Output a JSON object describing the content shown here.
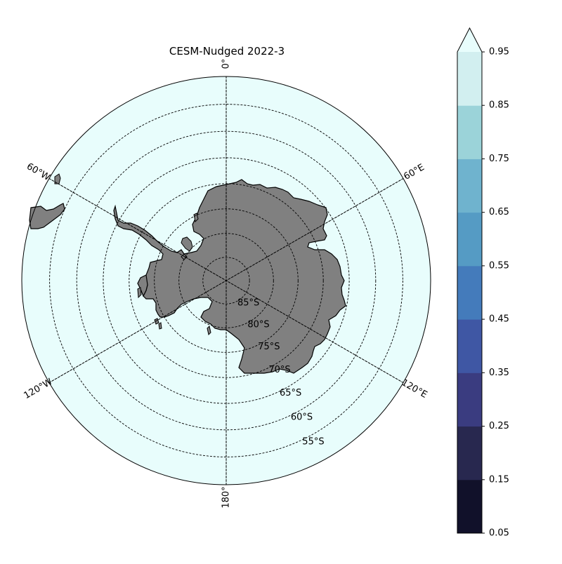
{
  "title": "CESM-Nudged 2022-3",
  "projection": "south-polar-stereographic",
  "ocean_color": "#e8fdfc",
  "land_color": "#808080",
  "meridian_labels": [
    {
      "text": "0°",
      "lon": 0
    },
    {
      "text": "60°E",
      "lon": 60
    },
    {
      "text": "120°E",
      "lon": 120
    },
    {
      "text": "180°",
      "lon": 180
    },
    {
      "text": "120°W",
      "lon": -120
    },
    {
      "text": "60°W",
      "lon": -60
    }
  ],
  "latitude_labels": [
    "85°S",
    "80°S",
    "75°S",
    "70°S",
    "65°S",
    "60°S",
    "55°S"
  ],
  "latitude_circles": [
    -85,
    -80,
    -75,
    -70,
    -65,
    -60,
    -55
  ],
  "boundary_latitude": -50,
  "colorbar": {
    "ticks": [
      "0.05",
      "0.15",
      "0.25",
      "0.35",
      "0.45",
      "0.55",
      "0.65",
      "0.75",
      "0.85",
      "0.95"
    ],
    "extend": "max",
    "colors": [
      "#11112a",
      "#28284f",
      "#3a3c80",
      "#3f57a4",
      "#447bbb",
      "#559bc4",
      "#6fb3ce",
      "#9bd3d9",
      "#d2eff0",
      "#e8fdfc"
    ]
  }
}
